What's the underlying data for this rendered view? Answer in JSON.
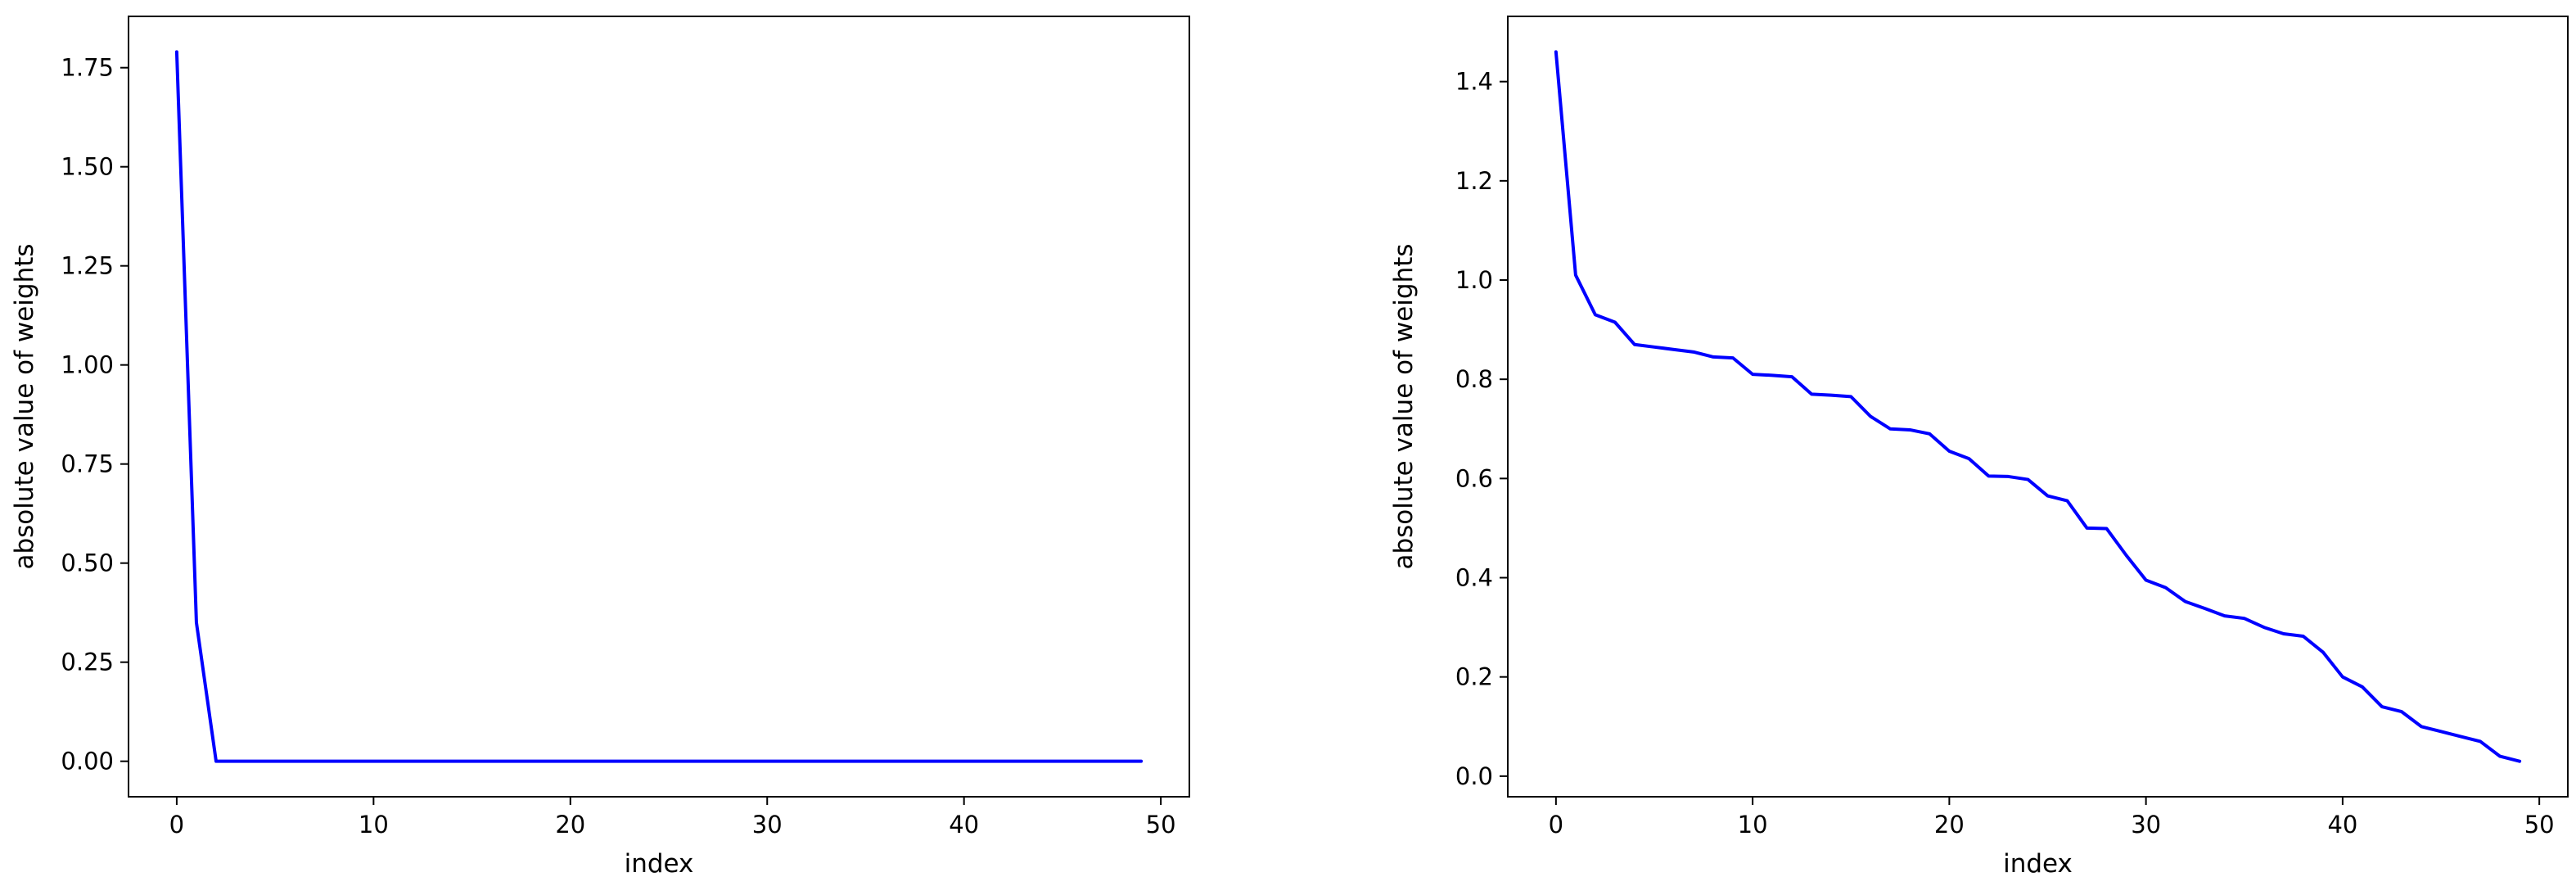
{
  "chart_data": [
    {
      "type": "line",
      "xlabel": "index",
      "ylabel": "absolute value of weights",
      "xlim": [
        -2.45,
        51.45
      ],
      "ylim": [
        -0.0895,
        1.8795
      ],
      "xticks": [
        0,
        10,
        20,
        30,
        40,
        50
      ],
      "xtick_labels": [
        "0",
        "10",
        "20",
        "30",
        "40",
        "50"
      ],
      "yticks": [
        0.0,
        0.25,
        0.5,
        0.75,
        1.0,
        1.25,
        1.5,
        1.75
      ],
      "ytick_labels": [
        "0.00",
        "0.25",
        "0.50",
        "0.75",
        "1.00",
        "1.25",
        "1.50",
        "1.75"
      ],
      "grid": false,
      "color": "#0000ff",
      "x": [
        0,
        1,
        2,
        3,
        4,
        5,
        6,
        7,
        8,
        9,
        10,
        11,
        12,
        13,
        14,
        15,
        16,
        17,
        18,
        19,
        20,
        21,
        22,
        23,
        24,
        25,
        26,
        27,
        28,
        29,
        30,
        31,
        32,
        33,
        34,
        35,
        36,
        37,
        38,
        39,
        40,
        41,
        42,
        43,
        44,
        45,
        46,
        47,
        48,
        49
      ],
      "y": [
        1.79,
        0.35,
        0.0,
        0,
        0,
        0,
        0,
        0,
        0,
        0,
        0,
        0,
        0,
        0,
        0,
        0,
        0,
        0,
        0,
        0,
        0,
        0,
        0,
        0,
        0,
        0,
        0,
        0,
        0,
        0,
        0,
        0,
        0,
        0,
        0,
        0,
        0,
        0,
        0,
        0,
        0,
        0,
        0,
        0,
        0,
        0,
        0,
        0,
        0,
        0
      ]
    },
    {
      "type": "line",
      "xlabel": "index",
      "ylabel": "absolute value of weights",
      "xlim": [
        -2.45,
        51.45
      ],
      "ylim": [
        -0.0415,
        1.5315
      ],
      "xticks": [
        0,
        10,
        20,
        30,
        40,
        50
      ],
      "xtick_labels": [
        "0",
        "10",
        "20",
        "30",
        "40",
        "50"
      ],
      "yticks": [
        0.0,
        0.2,
        0.4,
        0.6,
        0.8,
        1.0,
        1.2,
        1.4
      ],
      "ytick_labels": [
        "0.0",
        "0.2",
        "0.4",
        "0.6",
        "0.8",
        "1.0",
        "1.2",
        "1.4"
      ],
      "grid": false,
      "color": "#0000ff",
      "x": [
        0,
        1,
        2,
        3,
        4,
        5,
        6,
        7,
        8,
        9,
        10,
        11,
        12,
        13,
        14,
        15,
        16,
        17,
        18,
        19,
        20,
        21,
        22,
        23,
        24,
        25,
        26,
        27,
        28,
        29,
        30,
        31,
        32,
        33,
        34,
        35,
        36,
        37,
        38,
        39,
        40,
        41,
        42,
        43,
        44,
        45,
        46,
        47,
        48,
        49
      ],
      "y": [
        1.46,
        1.01,
        0.93,
        0.915,
        0.87,
        0.865,
        0.86,
        0.855,
        0.845,
        0.843,
        0.81,
        0.808,
        0.805,
        0.77,
        0.768,
        0.765,
        0.725,
        0.7,
        0.698,
        0.69,
        0.655,
        0.64,
        0.605,
        0.604,
        0.598,
        0.565,
        0.555,
        0.5,
        0.499,
        0.445,
        0.395,
        0.38,
        0.352,
        0.338,
        0.323,
        0.318,
        0.3,
        0.287,
        0.282,
        0.25,
        0.2,
        0.18,
        0.14,
        0.13,
        0.1,
        0.09,
        0.08,
        0.07,
        0.04,
        0.03
      ]
    }
  ]
}
